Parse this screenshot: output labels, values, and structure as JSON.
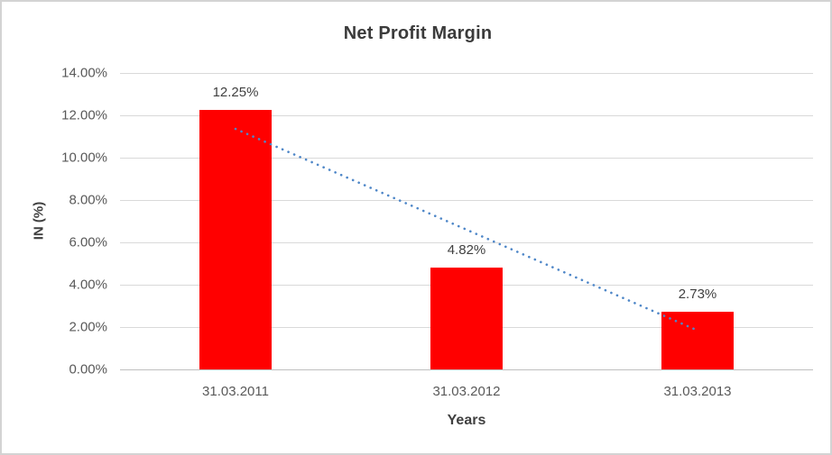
{
  "chart_data": {
    "type": "bar",
    "title": "Net Profit Margin",
    "categories": [
      "31.03.2011",
      "31.03.2012",
      "31.03.2013"
    ],
    "values": [
      12.25,
      4.82,
      2.73
    ],
    "data_labels": [
      "12.25%",
      "4.82%",
      "2.73%"
    ],
    "xlabel": "Years",
    "ylabel": "IN (%)",
    "ylim": [
      0,
      14
    ],
    "y_tick_step": 2,
    "y_tick_labels": [
      "0.00%",
      "2.00%",
      "4.00%",
      "6.00%",
      "8.00%",
      "10.00%",
      "12.00%",
      "14.00%"
    ],
    "grid": true,
    "legend": "none",
    "bar_color": "#ff0000",
    "trendline": {
      "type": "linear",
      "style": "dotted",
      "color": "#4f87c8",
      "start_value": 11.36,
      "end_value": 1.84
    }
  },
  "colors": {
    "background": "#ffffff",
    "frame_border": "#d3d3d3",
    "gridline": "#d9d9d9",
    "axis_line": "#bfbfbf",
    "title_text": "#3b3b3b",
    "axis_text": "#595959",
    "label_text": "#404040"
  }
}
